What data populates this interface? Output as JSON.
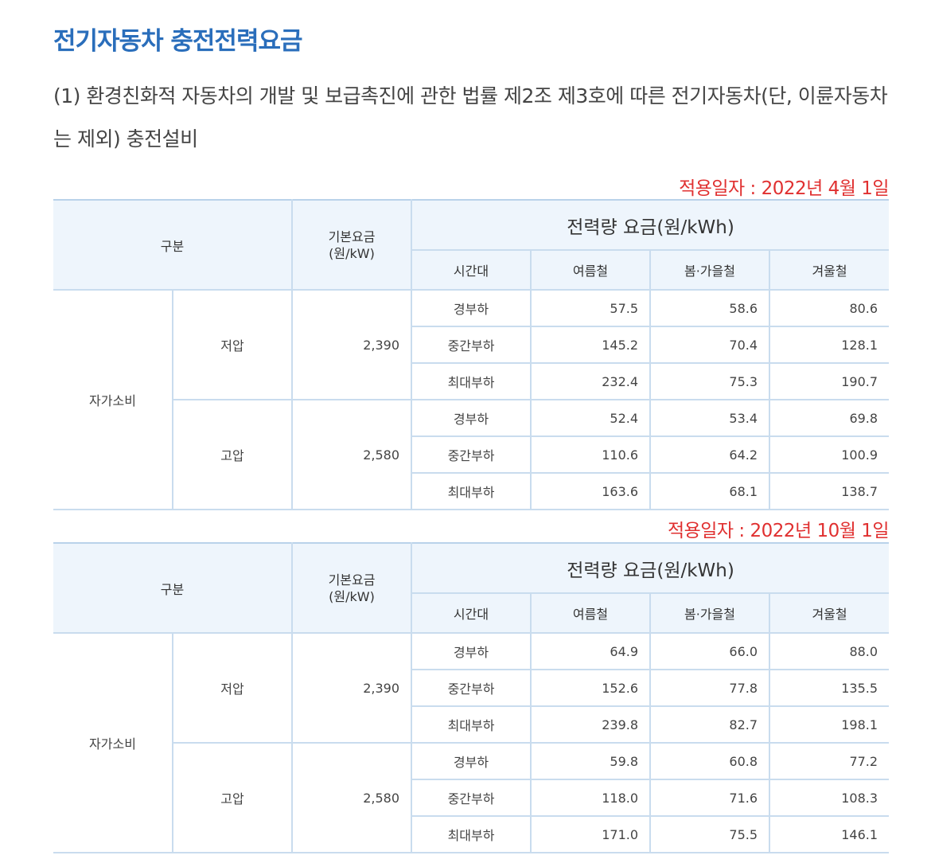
{
  "title": "전기자동차 충전전력요금",
  "intro": "(1) 환경친화적 자동차의 개발 및 보급촉진에 관한 법률 제2조 제3호에 따른 전기자동차(단, 이륜자동차는 제외) 충전설비",
  "headers": {
    "category": "구분",
    "base_line1": "기본요금",
    "base_line2": "(원/kW)",
    "energy": "전력량 요금(원/kWh)",
    "time": "시간대",
    "summer": "여름철",
    "spring_fall": "봄·가을철",
    "winter": "겨울철"
  },
  "tables": [
    {
      "date": "적용일자 : 2022년 4월 1일",
      "group": "자가소비",
      "sections": [
        {
          "voltage": "저압",
          "base": "2,390",
          "rows": [
            {
              "time": "경부하",
              "summer": "57.5",
              "spring_fall": "58.6",
              "winter": "80.6"
            },
            {
              "time": "중간부하",
              "summer": "145.2",
              "spring_fall": "70.4",
              "winter": "128.1"
            },
            {
              "time": "최대부하",
              "summer": "232.4",
              "spring_fall": "75.3",
              "winter": "190.7"
            }
          ]
        },
        {
          "voltage": "고압",
          "base": "2,580",
          "rows": [
            {
              "time": "경부하",
              "summer": "52.4",
              "spring_fall": "53.4",
              "winter": "69.8"
            },
            {
              "time": "중간부하",
              "summer": "110.6",
              "spring_fall": "64.2",
              "winter": "100.9"
            },
            {
              "time": "최대부하",
              "summer": "163.6",
              "spring_fall": "68.1",
              "winter": "138.7"
            }
          ]
        }
      ]
    },
    {
      "date": "적용일자 : 2022년 10월 1일",
      "group": "자가소비",
      "sections": [
        {
          "voltage": "저압",
          "base": "2,390",
          "rows": [
            {
              "time": "경부하",
              "summer": "64.9",
              "spring_fall": "66.0",
              "winter": "88.0"
            },
            {
              "time": "중간부하",
              "summer": "152.6",
              "spring_fall": "77.8",
              "winter": "135.5"
            },
            {
              "time": "최대부하",
              "summer": "239.8",
              "spring_fall": "82.7",
              "winter": "198.1"
            }
          ]
        },
        {
          "voltage": "고압",
          "base": "2,580",
          "rows": [
            {
              "time": "경부하",
              "summer": "59.8",
              "spring_fall": "60.8",
              "winter": "77.2"
            },
            {
              "time": "중간부하",
              "summer": "118.0",
              "spring_fall": "71.6",
              "winter": "108.3"
            },
            {
              "time": "최대부하",
              "summer": "171.0",
              "spring_fall": "75.5",
              "winter": "146.1"
            }
          ]
        }
      ]
    }
  ]
}
